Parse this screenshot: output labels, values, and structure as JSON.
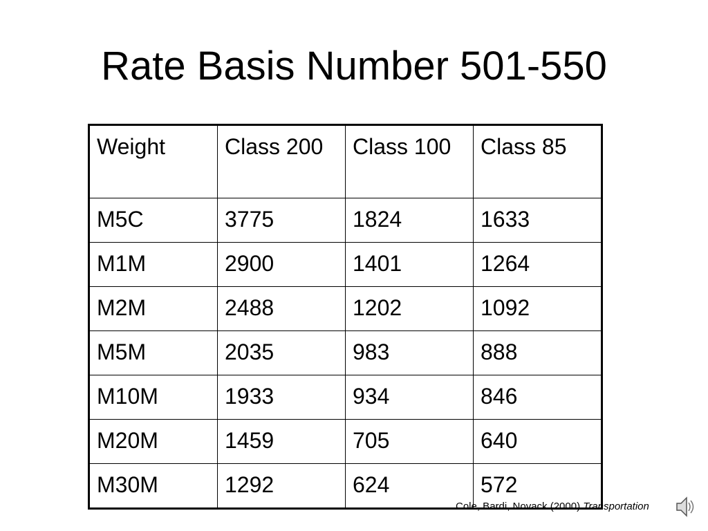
{
  "title": "Rate Basis Number 501-550",
  "table": {
    "header": [
      "Weight",
      "Class 200",
      "Class 100",
      "Class 85"
    ],
    "rows": [
      [
        "M5C",
        3775,
        1824,
        1633
      ],
      [
        "M1M",
        2900,
        1401,
        1264
      ],
      [
        "M2M",
        2488,
        1202,
        1092
      ],
      [
        "M5M",
        2035,
        983,
        888
      ],
      [
        "M10M",
        1933,
        934,
        846
      ],
      [
        "M20M",
        1459,
        705,
        640
      ],
      [
        "M30M",
        1292,
        624,
        572
      ]
    ]
  },
  "citation": {
    "authors": "Cole, Bardi, Novack (2000)",
    "work": "Transportation"
  }
}
